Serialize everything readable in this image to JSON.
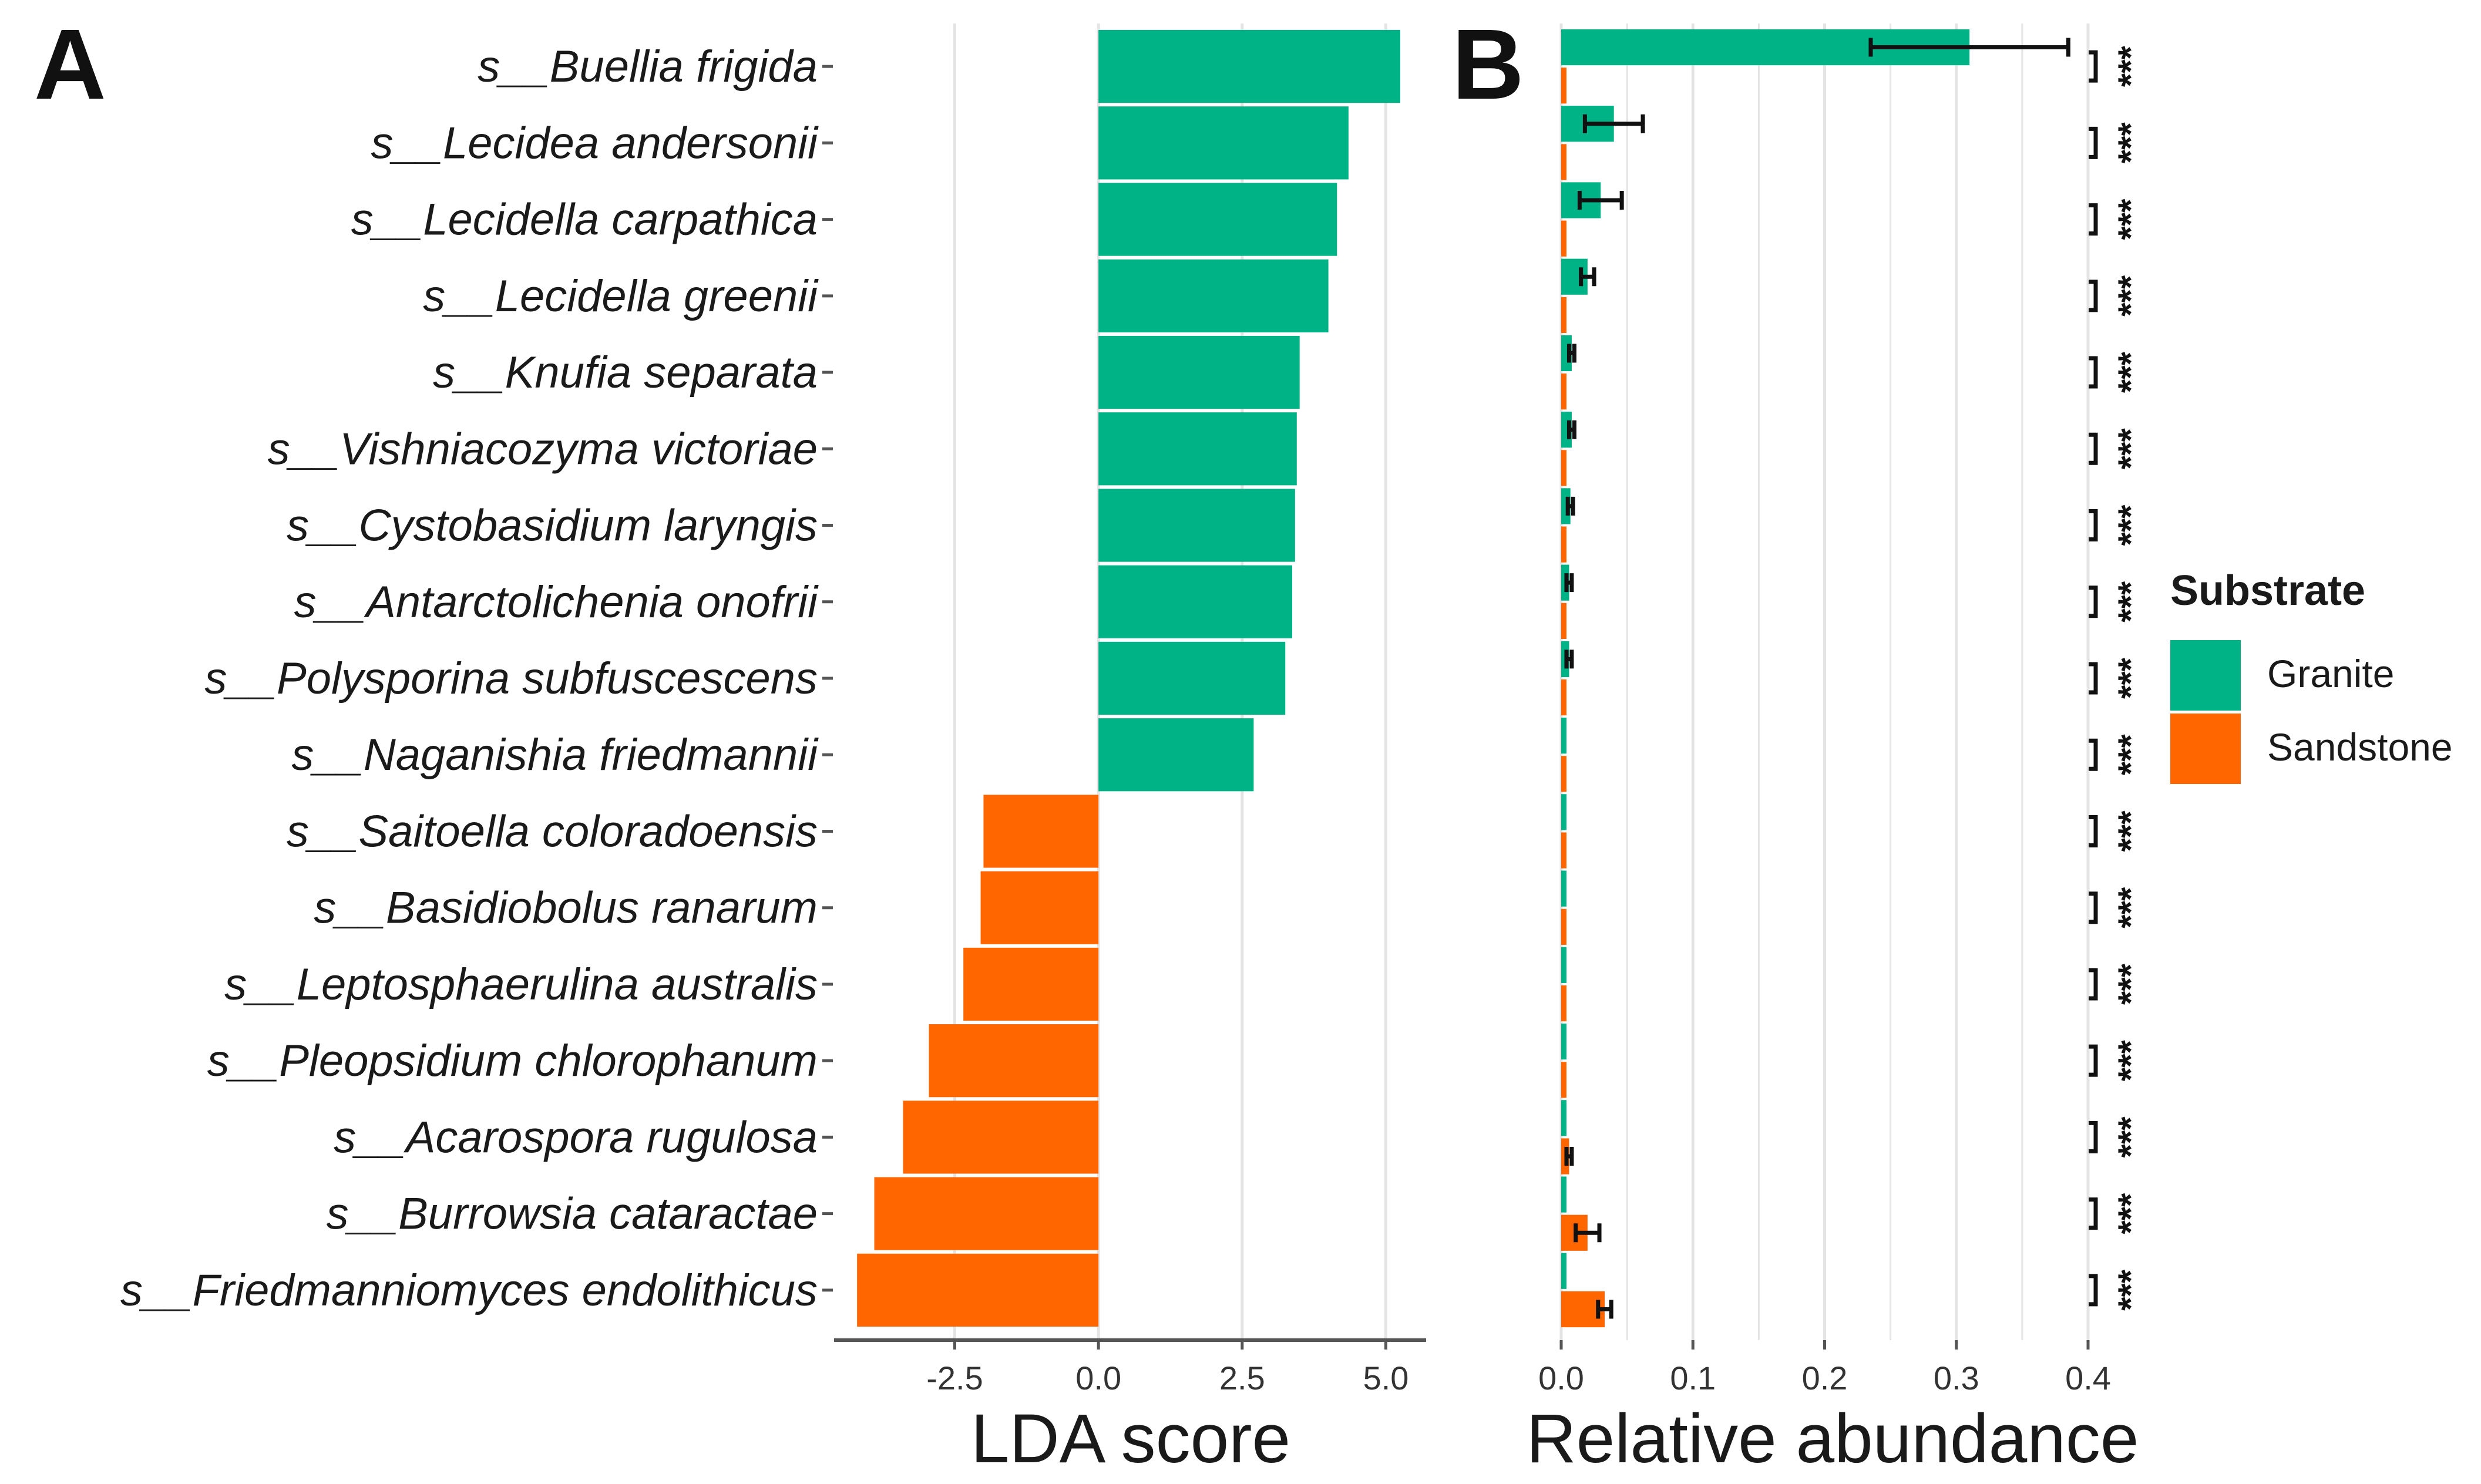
{
  "panels": {
    "a_label": "A",
    "b_label": "B"
  },
  "colors": {
    "granite": "#00B386",
    "sandstone": "#FF6600",
    "grid": "#E4E4E4",
    "axis": "#555555",
    "text": "#1a1a1a"
  },
  "chart_data": [
    {
      "type": "bar",
      "orientation": "horizontal",
      "panel": "A",
      "title": "",
      "xlabel": "LDA score",
      "ylabel": "",
      "categories": [
        "s__Buellia frigida",
        "s__Lecidea andersonii",
        "s__Lecidella carpathica",
        "s__Lecidella greenii",
        "s__Knufia separata",
        "s__Vishniacozyma victoriae",
        "s__Cystobasidium laryngis",
        "s__Antarctolichenia onofrii",
        "s__Polysporina subfuscescens",
        "s__Naganishia friedmannii",
        "s__Saitoella coloradoensis",
        "s__Basidiobolus ranarum",
        "s__Leptosphaerulina australis",
        "s__Pleopsidium chlorophanum",
        "s__Acarospora rugulosa",
        "s__Burrowsia cataractae",
        "s__Friedmanniomyces endolithicus"
      ],
      "values": [
        5.25,
        4.35,
        4.15,
        4.0,
        3.5,
        3.45,
        3.42,
        3.37,
        3.25,
        2.7,
        -2.0,
        -2.05,
        -2.35,
        -2.95,
        -3.4,
        -3.9,
        -4.2
      ],
      "groups": [
        "Granite",
        "Granite",
        "Granite",
        "Granite",
        "Granite",
        "Granite",
        "Granite",
        "Granite",
        "Granite",
        "Granite",
        "Sandstone",
        "Sandstone",
        "Sandstone",
        "Sandstone",
        "Sandstone",
        "Sandstone",
        "Sandstone"
      ],
      "xlim": [
        -4.6,
        5.7
      ],
      "xticks": [
        "-2.5",
        "0.0",
        "2.5",
        "5.0"
      ],
      "grid": true
    },
    {
      "type": "bar",
      "orientation": "horizontal",
      "panel": "B",
      "title": "",
      "xlabel": "Relative abundance",
      "ylabel": "",
      "xlim": [
        0,
        0.4
      ],
      "xticks": [
        "0.0",
        "0.1",
        "0.2",
        "0.3",
        "0.4"
      ],
      "grid": true,
      "significance": "***",
      "series": [
        {
          "name": "Granite",
          "values": [
            0.31,
            0.04,
            0.03,
            0.02,
            0.008,
            0.008,
            0.007,
            0.006,
            0.006,
            0.001,
            0.001,
            0.001,
            0.001,
            0.001,
            0.001,
            0.001,
            0.001
          ],
          "error": [
            0.075,
            0.022,
            0.016,
            0.005,
            0.002,
            0.002,
            0.002,
            0.002,
            0.002,
            0,
            0,
            0,
            0,
            0,
            0,
            0,
            0
          ]
        },
        {
          "name": "Sandstone",
          "values": [
            0.001,
            0.001,
            0.001,
            0.001,
            0.001,
            0.001,
            0.001,
            0.001,
            0.001,
            0.002,
            0.001,
            0.001,
            0.001,
            0.003,
            0.006,
            0.02,
            0.033
          ],
          "error": [
            0,
            0,
            0,
            0,
            0,
            0,
            0,
            0,
            0,
            0,
            0,
            0,
            0,
            0,
            0.002,
            0.009,
            0.005
          ]
        }
      ],
      "legend": {
        "title": "Substrate",
        "entries": [
          "Granite",
          "Sandstone"
        ],
        "placement": "right"
      }
    }
  ]
}
